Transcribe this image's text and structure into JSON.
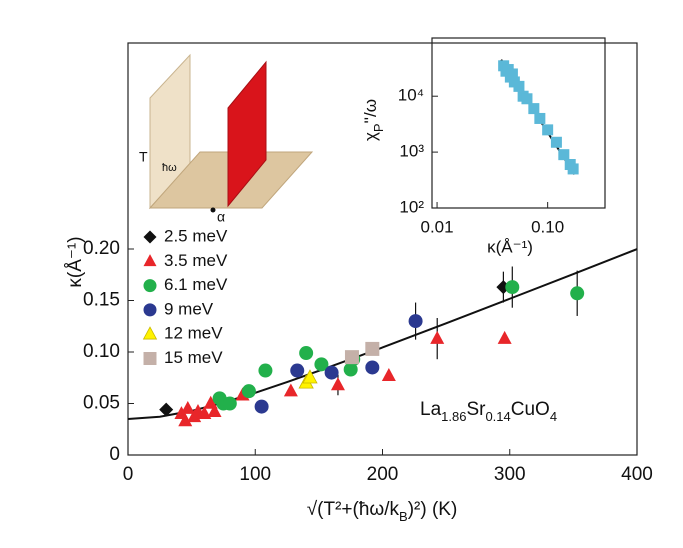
{
  "chart_data": [
    {
      "type": "scatter",
      "x_label_parts": [
        "√(T²+(ħω/k",
        "B",
        ")²) (K)"
      ],
      "y_label": "κ(Å⁻¹)",
      "formula_parts": [
        "La",
        "1.86",
        "Sr",
        "0.14",
        "CuO",
        "4"
      ],
      "annotations": [
        "T",
        "ħω",
        "α"
      ],
      "xlim": [
        0,
        400
      ],
      "xticks": [
        0,
        100,
        200,
        300,
        400
      ],
      "ylim": [
        0,
        0.4
      ],
      "yticks": [
        0,
        0.05,
        {
          "value": 0.1,
          "label": "0.10"
        },
        0.15,
        {
          "value": 0.2,
          "label": "0.20"
        }
      ],
      "legend": "upper left",
      "series": [
        {
          "name": "2.5 meV",
          "color": "#111111",
          "marker": "diamond",
          "x": [
            30,
            295
          ],
          "values": [
            0.044,
            0.163
          ],
          "errors": [
            0,
            0.015
          ]
        },
        {
          "name": "3.5 meV",
          "color": "#e8262a",
          "marker": "triangle",
          "x": [
            42,
            45,
            47,
            52,
            55,
            60,
            65,
            68,
            90,
            128,
            165,
            205,
            243,
            296
          ],
          "values": [
            0.04,
            0.033,
            0.045,
            0.037,
            0.042,
            0.04,
            0.05,
            0.042,
            0.058,
            0.062,
            0.068,
            0.077,
            0.113,
            0.113
          ],
          "errors": [
            0,
            0,
            0,
            0,
            0,
            0,
            0,
            0,
            0,
            0,
            0.01,
            0,
            0.02,
            0
          ]
        },
        {
          "name": "6.1 meV",
          "color": "#22b04b",
          "marker": "circle",
          "x": [
            72,
            75,
            80,
            95,
            108,
            140,
            152,
            175,
            177,
            302,
            353
          ],
          "values": [
            0.055,
            0.05,
            0.05,
            0.062,
            0.082,
            0.099,
            0.088,
            0.083,
            0.093,
            0.163,
            0.157
          ],
          "errors": [
            0,
            0,
            0,
            0,
            0,
            0,
            0,
            0,
            0,
            0.02,
            0.022
          ]
        },
        {
          "name": "9 meV",
          "color": "#2b3990",
          "marker": "circle",
          "x": [
            105,
            133,
            160,
            192,
            226
          ],
          "values": [
            0.047,
            0.082,
            0.08,
            0.085,
            0.13
          ],
          "errors": [
            0,
            0,
            0,
            0,
            0.018
          ]
        },
        {
          "name": "12 meV",
          "color": "#fff200",
          "marker": "triangle",
          "x": [
            140,
            143
          ],
          "values": [
            0.07,
            0.075
          ],
          "errors": [
            0,
            0
          ]
        },
        {
          "name": "15 meV",
          "color": "#c4b0a8",
          "marker": "square",
          "x": [
            176,
            192
          ],
          "values": [
            0.095,
            0.103
          ],
          "errors": [
            0,
            0
          ]
        }
      ],
      "fit": {
        "color": "#111111",
        "x": [
          0,
          25,
          50,
          75,
          100,
          125,
          150,
          200,
          250,
          300,
          350,
          400
        ],
        "values": [
          0.035,
          0.0371,
          0.0428,
          0.0509,
          0.0604,
          0.0708,
          0.0817,
          0.1044,
          0.1279,
          0.1517,
          0.1757,
          0.1999
        ]
      }
    },
    {
      "type": "scatter",
      "x_label": "κ(Å⁻¹)",
      "y_label_parts": [
        "χ",
        "P",
        "''/ω"
      ],
      "xlog": true,
      "ylog": true,
      "xlim": [
        0.009,
        0.33
      ],
      "xticks": [
        0.01,
        {
          "value": 0.1,
          "label": "0.10"
        }
      ],
      "ylim": [
        100,
        110000
      ],
      "yticks": [
        {
          "value": 100,
          "label": "10²"
        },
        {
          "value": 1000,
          "label": "10³"
        },
        {
          "value": 10000,
          "label": "10⁴"
        }
      ],
      "series": [
        {
          "color": "#5bb8d8",
          "marker": "square",
          "x": [
            0.04,
            0.042,
            0.044,
            0.046,
            0.048,
            0.05,
            0.055,
            0.06,
            0.065,
            0.075,
            0.085,
            0.1,
            0.12,
            0.14,
            0.16,
            0.17
          ],
          "values": [
            35000,
            28000,
            30000,
            22000,
            25000,
            18000,
            15000,
            10000,
            9000,
            6000,
            4000,
            2500,
            1500,
            900,
            600,
            500
          ]
        }
      ],
      "fit": {
        "color": "#111111",
        "x": [
          0.038,
          0.175
        ],
        "values": [
          45000,
          400
        ]
      }
    }
  ]
}
